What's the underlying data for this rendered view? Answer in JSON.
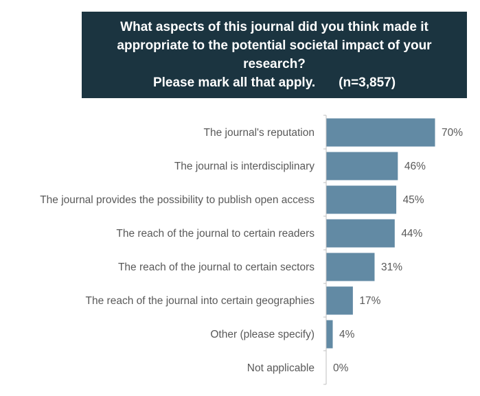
{
  "chart_data": {
    "type": "bar",
    "orientation": "horizontal",
    "title_lines": [
      "What aspects of this journal did you think made it",
      "appropriate to the potential societal impact of your",
      "research?"
    ],
    "subtitle": "Please mark all that apply.",
    "sample_size": "(n=3,857)",
    "categories": [
      "The journal's reputation",
      "The journal is interdisciplinary",
      "The journal provides the possibility to publish open access",
      "The reach of the journal to certain readers",
      "The reach of the journal to certain sectors",
      "The reach of the journal into certain geographies",
      "Other (please specify)",
      "Not applicable"
    ],
    "values": [
      70,
      46,
      45,
      44,
      31,
      17,
      4,
      0
    ],
    "value_labels": [
      "70%",
      "46%",
      "45%",
      "44%",
      "31%",
      "17%",
      "4%",
      "0%"
    ],
    "xlim": [
      0,
      100
    ],
    "bar_color": "#628aa4",
    "title_background": "#1b3440",
    "grid": false,
    "legend": "none"
  }
}
